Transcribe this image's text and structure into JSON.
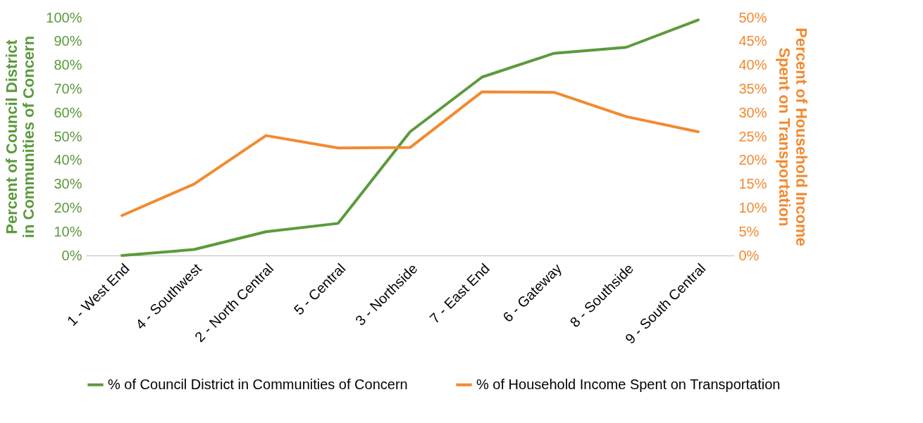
{
  "chart_data": {
    "type": "line",
    "categories": [
      "1 - West End",
      "4 - Southwest",
      "2 - North Central",
      "5 - Central",
      "3 - Northside",
      "7 - East End",
      "6 - Gateway",
      "8 - Southside",
      "9 - South Central"
    ],
    "series": [
      {
        "name": "% of Council District in Communities of Concern",
        "color": "#5b9a3c",
        "values": [
          0,
          2.5,
          10,
          13.5,
          52,
          75,
          85,
          87.5,
          99
        ]
      },
      {
        "name": "% of Household Income Spent on Transportation",
        "color": "#f28a30",
        "axis": "y2",
        "values": [
          8.4,
          15,
          25.2,
          22.6,
          22.7,
          34.4,
          34.3,
          29.2,
          26
        ]
      }
    ],
    "ylabel": "Percent of Council District in Communities of Concern",
    "y2label": "Percent of Household Income Spent on Transportation",
    "ylim": [
      0,
      100
    ],
    "yticks": [
      {
        "value": 0,
        "label": "0%"
      },
      {
        "value": 10,
        "label": "10%"
      },
      {
        "value": 20,
        "label": "20%"
      },
      {
        "value": 30,
        "label": "30%"
      },
      {
        "value": 40,
        "label": "40%"
      },
      {
        "value": 50,
        "label": "50%"
      },
      {
        "value": 60,
        "label": "60%"
      },
      {
        "value": 70,
        "label": "70%"
      },
      {
        "value": 80,
        "label": "80%"
      },
      {
        "value": 90,
        "label": "90%"
      },
      {
        "value": 100,
        "label": "100%"
      }
    ],
    "y2lim": [
      0,
      50
    ],
    "y2ticks": [
      {
        "value": 0,
        "label": "0%"
      },
      {
        "value": 5,
        "label": "5%"
      },
      {
        "value": 10,
        "label": "10%"
      },
      {
        "value": 15,
        "label": "15%"
      },
      {
        "value": 20,
        "label": "20%"
      },
      {
        "value": 25,
        "label": "25%"
      },
      {
        "value": 30,
        "label": "30%"
      },
      {
        "value": 35,
        "label": "35%"
      },
      {
        "value": 40,
        "label": "40%"
      },
      {
        "value": 45,
        "label": "45%"
      },
      {
        "value": 50,
        "label": "50%"
      }
    ],
    "grid": false,
    "legend": "bottom",
    "marker": "none",
    "line_style": "solid"
  }
}
